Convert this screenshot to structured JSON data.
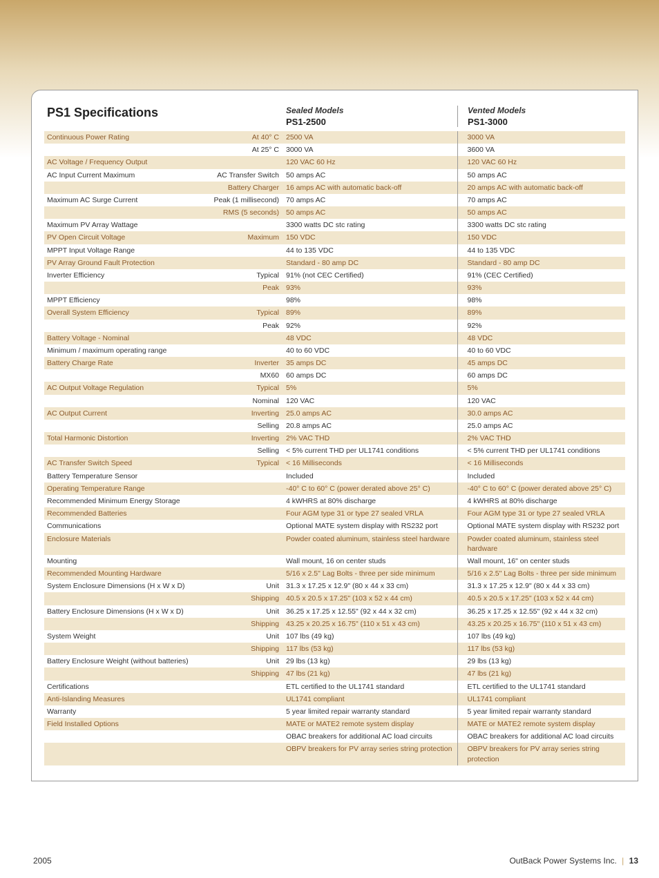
{
  "title": "PS1 Specifications",
  "sealed_label": "Sealed Models",
  "sealed_model": "PS1-2500",
  "vented_label": "Vented Models",
  "vented_model": "PS1-3000",
  "footer_year": "2005",
  "footer_company": "OutBack Power Systems Inc.",
  "footer_page": "13",
  "rows": [
    {
      "shaded": true,
      "label": "Continuous Power Rating",
      "sub": "At 40° C",
      "c1": "2500 VA",
      "c2": "3000 VA"
    },
    {
      "shaded": false,
      "label": "",
      "sub": "At 25° C",
      "c1": "3000 VA",
      "c2": "3600 VA"
    },
    {
      "shaded": true,
      "label": "AC Voltage / Frequency Output",
      "sub": "",
      "c1": "120 VAC 60 Hz",
      "c2": "120 VAC 60 Hz"
    },
    {
      "shaded": false,
      "label": "AC Input Current Maximum",
      "sub": "AC Transfer Switch",
      "c1": "50 amps AC",
      "c2": "50 amps AC"
    },
    {
      "shaded": true,
      "label": "",
      "sub": "Battery Charger",
      "c1": "16 amps AC with automatic back-off",
      "c2": "20 amps AC with automatic back-off"
    },
    {
      "shaded": false,
      "label": "Maximum AC Surge Current",
      "sub": "Peak (1 millisecond)",
      "c1": "70 amps AC",
      "c2": "70 amps AC"
    },
    {
      "shaded": true,
      "label": "",
      "sub": "RMS (5 seconds)",
      "c1": "50 amps AC",
      "c2": "50 amps AC"
    },
    {
      "shaded": false,
      "label": "Maximum PV Array Wattage",
      "sub": "",
      "c1": "3300 watts DC stc rating",
      "c2": "3300 watts DC stc rating"
    },
    {
      "shaded": true,
      "label": "PV Open Circuit Voltage",
      "sub": "Maximum",
      "c1": "150 VDC",
      "c2": "150 VDC"
    },
    {
      "shaded": false,
      "label": "MPPT Input Voltage Range",
      "sub": "",
      "c1": "44 to 135 VDC",
      "c2": "44 to 135 VDC"
    },
    {
      "shaded": true,
      "label": "PV Array Ground Fault Protection",
      "sub": "",
      "c1": "Standard - 80 amp DC",
      "c2": "Standard - 80 amp DC"
    },
    {
      "shaded": false,
      "label": "Inverter Efficiency",
      "sub": "Typical",
      "c1": "91% (not CEC Certified)",
      "c2": "91% (CEC Certified)"
    },
    {
      "shaded": true,
      "label": "",
      "sub": "Peak",
      "c1": "93%",
      "c2": "93%"
    },
    {
      "shaded": false,
      "label": "MPPT Efficiency",
      "sub": "",
      "c1": "98%",
      "c2": "98%"
    },
    {
      "shaded": true,
      "label": "Overall System Efficiency",
      "sub": "Typical",
      "c1": "89%",
      "c2": "89%"
    },
    {
      "shaded": false,
      "label": "",
      "sub": "Peak",
      "c1": "92%",
      "c2": "92%"
    },
    {
      "shaded": true,
      "label": "Battery Voltage - Nominal",
      "sub": "",
      "c1": "48 VDC",
      "c2": "48 VDC"
    },
    {
      "shaded": false,
      "label": " Minimum / maximum operating range",
      "sub": "",
      "c1": "40 to 60 VDC",
      "c2": "40 to 60 VDC"
    },
    {
      "shaded": true,
      "label": "Battery Charge Rate",
      "sub": "Inverter",
      "c1": "35 amps DC",
      "c2": "45 amps DC"
    },
    {
      "shaded": false,
      "label": "",
      "sub": "MX60",
      "c1": "60 amps DC",
      "c2": "60 amps DC"
    },
    {
      "shaded": true,
      "label": "AC Output Voltage Regulation",
      "sub": "Typical",
      "c1": "5%",
      "c2": "5%"
    },
    {
      "shaded": false,
      "label": "",
      "sub": "Nominal",
      "c1": "120 VAC",
      "c2": "120 VAC"
    },
    {
      "shaded": true,
      "label": "AC Output Current",
      "sub": "Inverting",
      "c1": "25.0 amps AC",
      "c2": "30.0 amps AC"
    },
    {
      "shaded": false,
      "label": "",
      "sub": "Selling",
      "c1": "20.8 amps AC",
      "c2": "25.0 amps AC"
    },
    {
      "shaded": true,
      "label": "Total Harmonic Distortion",
      "sub": "Inverting",
      "c1": "2% VAC THD",
      "c2": "2% VAC THD"
    },
    {
      "shaded": false,
      "label": "",
      "sub": "Selling",
      "c1": "< 5% current THD per UL1741 conditions",
      "c2": "< 5% current THD per UL1741 conditions"
    },
    {
      "shaded": true,
      "label": "AC Transfer Switch Speed",
      "sub": "Typical",
      "c1": "< 16 Milliseconds",
      "c2": "< 16 Milliseconds"
    },
    {
      "shaded": false,
      "label": "Battery Temperature Sensor",
      "sub": "",
      "c1": "Included",
      "c2": "Included"
    },
    {
      "shaded": true,
      "label": "Operating Temperature Range",
      "sub": "",
      "c1": "-40° C to 60° C (power derated above 25° C)",
      "c2": "-40° C to 60° C (power derated above 25° C)"
    },
    {
      "shaded": false,
      "label": "Recommended Minimum Energy Storage",
      "sub": "",
      "c1": "4 kWHRS at 80% discharge",
      "c2": "4 kWHRS at 80% discharge"
    },
    {
      "shaded": true,
      "label": "Recommended Batteries",
      "sub": "",
      "c1": "Four AGM type 31 or type 27 sealed VRLA",
      "c2": "Four AGM type 31 or type 27 sealed VRLA"
    },
    {
      "shaded": false,
      "label": "Communications",
      "sub": "",
      "c1": "Optional MATE system display with RS232 port",
      "c2": "Optional MATE system display with RS232 port"
    },
    {
      "shaded": true,
      "label": "Enclosure Materials",
      "sub": "",
      "c1": "Powder coated aluminum, stainless steel hardware",
      "c2": "Powder coated aluminum, stainless steel hardware"
    },
    {
      "shaded": false,
      "label": "Mounting",
      "sub": "",
      "c1": "Wall mount, 16 on center studs",
      "c2": "Wall mount, 16\" on center studs"
    },
    {
      "shaded": true,
      "label": "Recommended Mounting Hardware",
      "sub": "",
      "c1": "5/16 x 2.5\" Lag Bolts - three per side minimum",
      "c2": "5/16 x 2.5\" Lag Bolts - three per side minimum"
    },
    {
      "shaded": false,
      "label": "System Enclosure Dimensions (H x W x D)",
      "sub": "Unit",
      "c1": "31.3 x 17.25 x 12.9\" (80 x 44 x 33 cm)",
      "c2": "31.3 x 17.25 x 12.9\" (80 x 44 x 33 cm)"
    },
    {
      "shaded": true,
      "label": "",
      "sub": "Shipping",
      "c1": "40.5 x 20.5 x 17.25\" (103 x 52 x 44 cm)",
      "c2": "40.5 x 20.5 x 17.25\" (103 x 52 x 44 cm)"
    },
    {
      "shaded": false,
      "label": "Battery Enclosure Dimensions (H x W x D)",
      "sub": "Unit",
      "c1": "36.25 x 17.25 x 12.55\" (92 x 44 x 32 cm)",
      "c2": "36.25 x 17.25 x 12.55\" (92 x 44 x 32 cm)"
    },
    {
      "shaded": true,
      "label": "",
      "sub": "Shipping",
      "c1": "43.25 x 20.25 x 16.75\" (110 x 51 x 43 cm)",
      "c2": "43.25 x 20.25 x 16.75\" (110 x 51 x 43 cm)"
    },
    {
      "shaded": false,
      "label": "System Weight",
      "sub": "Unit",
      "c1": "107 lbs (49 kg)",
      "c2": "107 lbs (49 kg)"
    },
    {
      "shaded": true,
      "label": "",
      "sub": "Shipping",
      "c1": "117 lbs (53 kg)",
      "c2": "117 lbs (53 kg)"
    },
    {
      "shaded": false,
      "label": "Battery Enclosure Weight (without batteries)",
      "sub": "Unit",
      "c1": "29 lbs (13 kg)",
      "c2": "29 lbs (13 kg)"
    },
    {
      "shaded": true,
      "label": "",
      "sub": "Shipping",
      "c1": "47 lbs (21 kg)",
      "c2": "47 lbs (21 kg)"
    },
    {
      "shaded": false,
      "label": "Certifications",
      "sub": "",
      "c1": "ETL certified to the UL1741 standard",
      "c2": "ETL certified to the UL1741 standard"
    },
    {
      "shaded": true,
      "label": "Anti-Islanding Measures",
      "sub": "",
      "c1": "UL1741 compliant",
      "c2": "UL1741 compliant"
    },
    {
      "shaded": false,
      "label": "Warranty",
      "sub": "",
      "c1": "5 year limited repair warranty standard",
      "c2": "5 year limited repair warranty standard"
    },
    {
      "shaded": true,
      "label": "Field Installed Options",
      "sub": "",
      "c1": "MATE or MATE2 remote system display",
      "c2": "MATE or MATE2 remote system display"
    },
    {
      "shaded": false,
      "label": "",
      "sub": "",
      "c1": "OBAC breakers for additional AC load circuits",
      "c2": "OBAC breakers for additional AC load circuits"
    },
    {
      "shaded": true,
      "label": "",
      "sub": "",
      "c1": "OBPV breakers for PV array series string protection",
      "c2": "OBPV breakers for PV array series string protection"
    }
  ]
}
